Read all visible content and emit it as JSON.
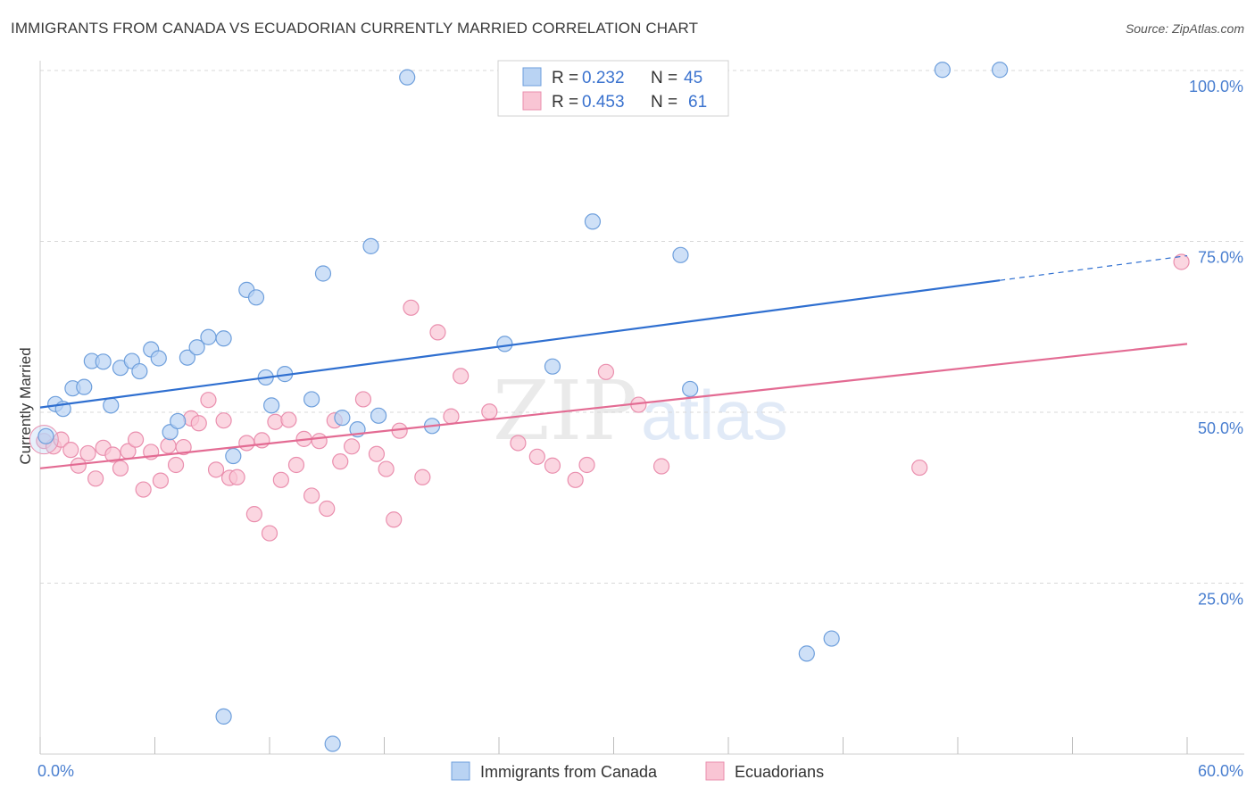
{
  "title": "IMMIGRANTS FROM CANADA VS ECUADORIAN CURRENTLY MARRIED CORRELATION CHART",
  "source": "Source: ZipAtlas.com",
  "watermark": {
    "zip": "ZIP",
    "atlas": "atlas"
  },
  "stats": [
    {
      "r_label": "R =",
      "r_value": "0.232",
      "n_label": "N =",
      "n_value": "45",
      "color": "#a8c8f0"
    },
    {
      "r_label": "R =",
      "r_value": "0.453",
      "n_label": "N =",
      "n_value": "61",
      "color": "#f7b7cb"
    }
  ],
  "legend": [
    "Immigrants from Canada",
    "Ecuadorians"
  ],
  "colors": {
    "blue_fill": "#b9d3f3",
    "blue_stroke": "#6e9fdc",
    "blue_line": "#2f6fd0",
    "pink_fill": "#f9c5d4",
    "pink_stroke": "#ea8fae",
    "pink_line": "#e36b93",
    "tick_text": "#4a7fd0",
    "grid": "#d8d8d8"
  },
  "chart_data": {
    "type": "scatter",
    "title": "IMMIGRANTS FROM CANADA VS ECUADORIAN CURRENTLY MARRIED CORRELATION CHART",
    "xlabel": "",
    "ylabel": "Currently Married",
    "xlim": [
      0,
      60
    ],
    "ylim": [
      0,
      100
    ],
    "x_tick_labels": [
      "0.0%",
      "60.0%"
    ],
    "y_tick_labels": [
      "25.0%",
      "50.0%",
      "75.0%",
      "100.0%"
    ],
    "y_ticks": [
      25,
      50,
      75,
      100
    ],
    "grid": true,
    "legend_position": "bottom",
    "series": [
      {
        "name": "Immigrants from Canada",
        "color": "#6e9fdc",
        "points": [
          [
            0.3,
            46.5
          ],
          [
            0.8,
            51.2
          ],
          [
            1.2,
            50.5
          ],
          [
            1.7,
            53.5
          ],
          [
            2.3,
            53.7
          ],
          [
            2.7,
            57.5
          ],
          [
            3.3,
            57.4
          ],
          [
            3.7,
            51.0
          ],
          [
            4.2,
            56.5
          ],
          [
            4.8,
            57.5
          ],
          [
            5.2,
            56.0
          ],
          [
            5.8,
            59.2
          ],
          [
            6.2,
            57.9
          ],
          [
            6.8,
            47.1
          ],
          [
            7.2,
            48.7
          ],
          [
            7.7,
            58.0
          ],
          [
            8.2,
            59.5
          ],
          [
            8.8,
            61.0
          ],
          [
            9.6,
            60.8
          ],
          [
            10.1,
            43.6
          ],
          [
            10.8,
            67.9
          ],
          [
            11.3,
            66.8
          ],
          [
            11.8,
            55.1
          ],
          [
            12.1,
            51.0
          ],
          [
            12.8,
            55.6
          ],
          [
            14.2,
            51.9
          ],
          [
            14.8,
            70.3
          ],
          [
            15.8,
            49.2
          ],
          [
            16.6,
            47.5
          ],
          [
            17.3,
            74.3
          ],
          [
            17.7,
            49.5
          ],
          [
            19.2,
            99.0
          ],
          [
            20.5,
            48.0
          ],
          [
            24.3,
            60.0
          ],
          [
            26.8,
            56.7
          ],
          [
            28.9,
            77.9
          ],
          [
            32.1,
            100.2
          ],
          [
            33.5,
            73.0
          ],
          [
            34.0,
            53.4
          ],
          [
            40.1,
            14.7
          ],
          [
            41.4,
            16.9
          ],
          [
            47.2,
            100.1
          ],
          [
            50.2,
            100.1
          ],
          [
            9.6,
            5.5
          ],
          [
            15.3,
            1.5
          ]
        ]
      },
      {
        "name": "Ecuadorians",
        "color": "#ea8fae",
        "points": [
          [
            0.2,
            45.8
          ],
          [
            0.7,
            45.0
          ],
          [
            1.1,
            46.0
          ],
          [
            1.6,
            44.5
          ],
          [
            2.0,
            42.2
          ],
          [
            2.5,
            44.0
          ],
          [
            2.9,
            40.3
          ],
          [
            3.3,
            44.8
          ],
          [
            3.8,
            43.8
          ],
          [
            4.2,
            41.8
          ],
          [
            4.6,
            44.3
          ],
          [
            5.0,
            46.0
          ],
          [
            5.4,
            38.7
          ],
          [
            5.8,
            44.2
          ],
          [
            6.3,
            40.0
          ],
          [
            6.7,
            45.1
          ],
          [
            7.1,
            42.3
          ],
          [
            7.5,
            44.9
          ],
          [
            7.9,
            49.1
          ],
          [
            8.3,
            48.4
          ],
          [
            8.8,
            51.8
          ],
          [
            9.2,
            41.6
          ],
          [
            9.6,
            48.8
          ],
          [
            9.9,
            40.4
          ],
          [
            10.3,
            40.5
          ],
          [
            10.8,
            45.5
          ],
          [
            11.2,
            35.1
          ],
          [
            11.6,
            45.9
          ],
          [
            12.0,
            32.3
          ],
          [
            12.3,
            48.6
          ],
          [
            12.6,
            40.1
          ],
          [
            13.0,
            48.9
          ],
          [
            13.4,
            42.3
          ],
          [
            13.8,
            46.1
          ],
          [
            14.2,
            37.8
          ],
          [
            14.6,
            45.8
          ],
          [
            15.0,
            35.9
          ],
          [
            15.4,
            48.8
          ],
          [
            15.7,
            42.8
          ],
          [
            16.3,
            45.0
          ],
          [
            16.9,
            51.9
          ],
          [
            17.6,
            43.9
          ],
          [
            18.1,
            41.7
          ],
          [
            18.5,
            34.3
          ],
          [
            18.8,
            47.3
          ],
          [
            19.4,
            65.3
          ],
          [
            20.0,
            40.5
          ],
          [
            20.8,
            61.7
          ],
          [
            21.5,
            49.4
          ],
          [
            22.0,
            55.3
          ],
          [
            23.5,
            50.1
          ],
          [
            25.0,
            45.5
          ],
          [
            26.0,
            43.5
          ],
          [
            26.8,
            42.2
          ],
          [
            28.0,
            40.1
          ],
          [
            28.6,
            42.3
          ],
          [
            29.6,
            55.9
          ],
          [
            31.3,
            51.1
          ],
          [
            32.5,
            42.1
          ],
          [
            46.0,
            41.9
          ],
          [
            59.7,
            72.0
          ]
        ]
      }
    ],
    "trend_lines": [
      {
        "series": "Immigrants from Canada",
        "x_start": 0,
        "y_start": 50.7,
        "x_end": 50.2,
        "y_end": 69.3,
        "dashed_to_x": 60,
        "dashed_to_y": 72.9
      },
      {
        "series": "Ecuadorians",
        "x_start": 0,
        "y_start": 41.8,
        "x_end": 60,
        "y_end": 60.0
      }
    ]
  }
}
